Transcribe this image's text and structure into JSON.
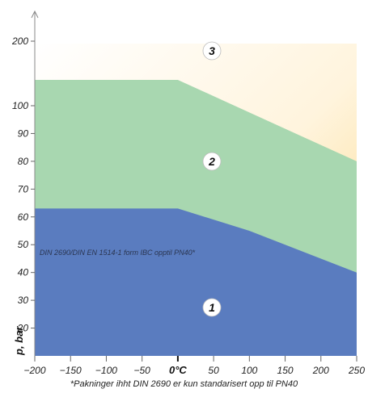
{
  "chart_data": {
    "type": "area",
    "ylabel": "p, bar",
    "x_ticks": [
      "−200",
      "−150",
      "−100",
      "−50",
      "0°C",
      "50",
      "100",
      "150",
      "200",
      "250"
    ],
    "x_tick_values": [
      -200,
      -150,
      -100,
      -50,
      0,
      50,
      100,
      150,
      200,
      250
    ],
    "y_ticks": [
      "20",
      "30",
      "40",
      "50",
      "60",
      "70",
      "80",
      "90",
      "100",
      "200"
    ],
    "y_tick_values": [
      20,
      30,
      40,
      50,
      60,
      70,
      80,
      90,
      100,
      200
    ],
    "xlim": [
      -200,
      250
    ],
    "y_scale": "piecewise (linear 10–100, compressed 100–200)",
    "zones": [
      {
        "label": "1",
        "color": "#5a7cbf",
        "boundary": [
          [
            -200,
            63
          ],
          [
            0,
            63
          ],
          [
            100,
            55
          ],
          [
            250,
            40
          ]
        ]
      },
      {
        "label": "2",
        "color": "#a8d7b0",
        "boundary": [
          [
            -200,
            140
          ],
          [
            0,
            140
          ],
          [
            250,
            80
          ]
        ]
      },
      {
        "label": "3",
        "color": "#fde6b8"
      }
    ],
    "annotation": "DIN 2690/DIN EN 1514-1  form IBC opptil PN40*",
    "footnote": "*Pakninger ihht DIN 2690 er kun standarisert opp til PN40"
  }
}
